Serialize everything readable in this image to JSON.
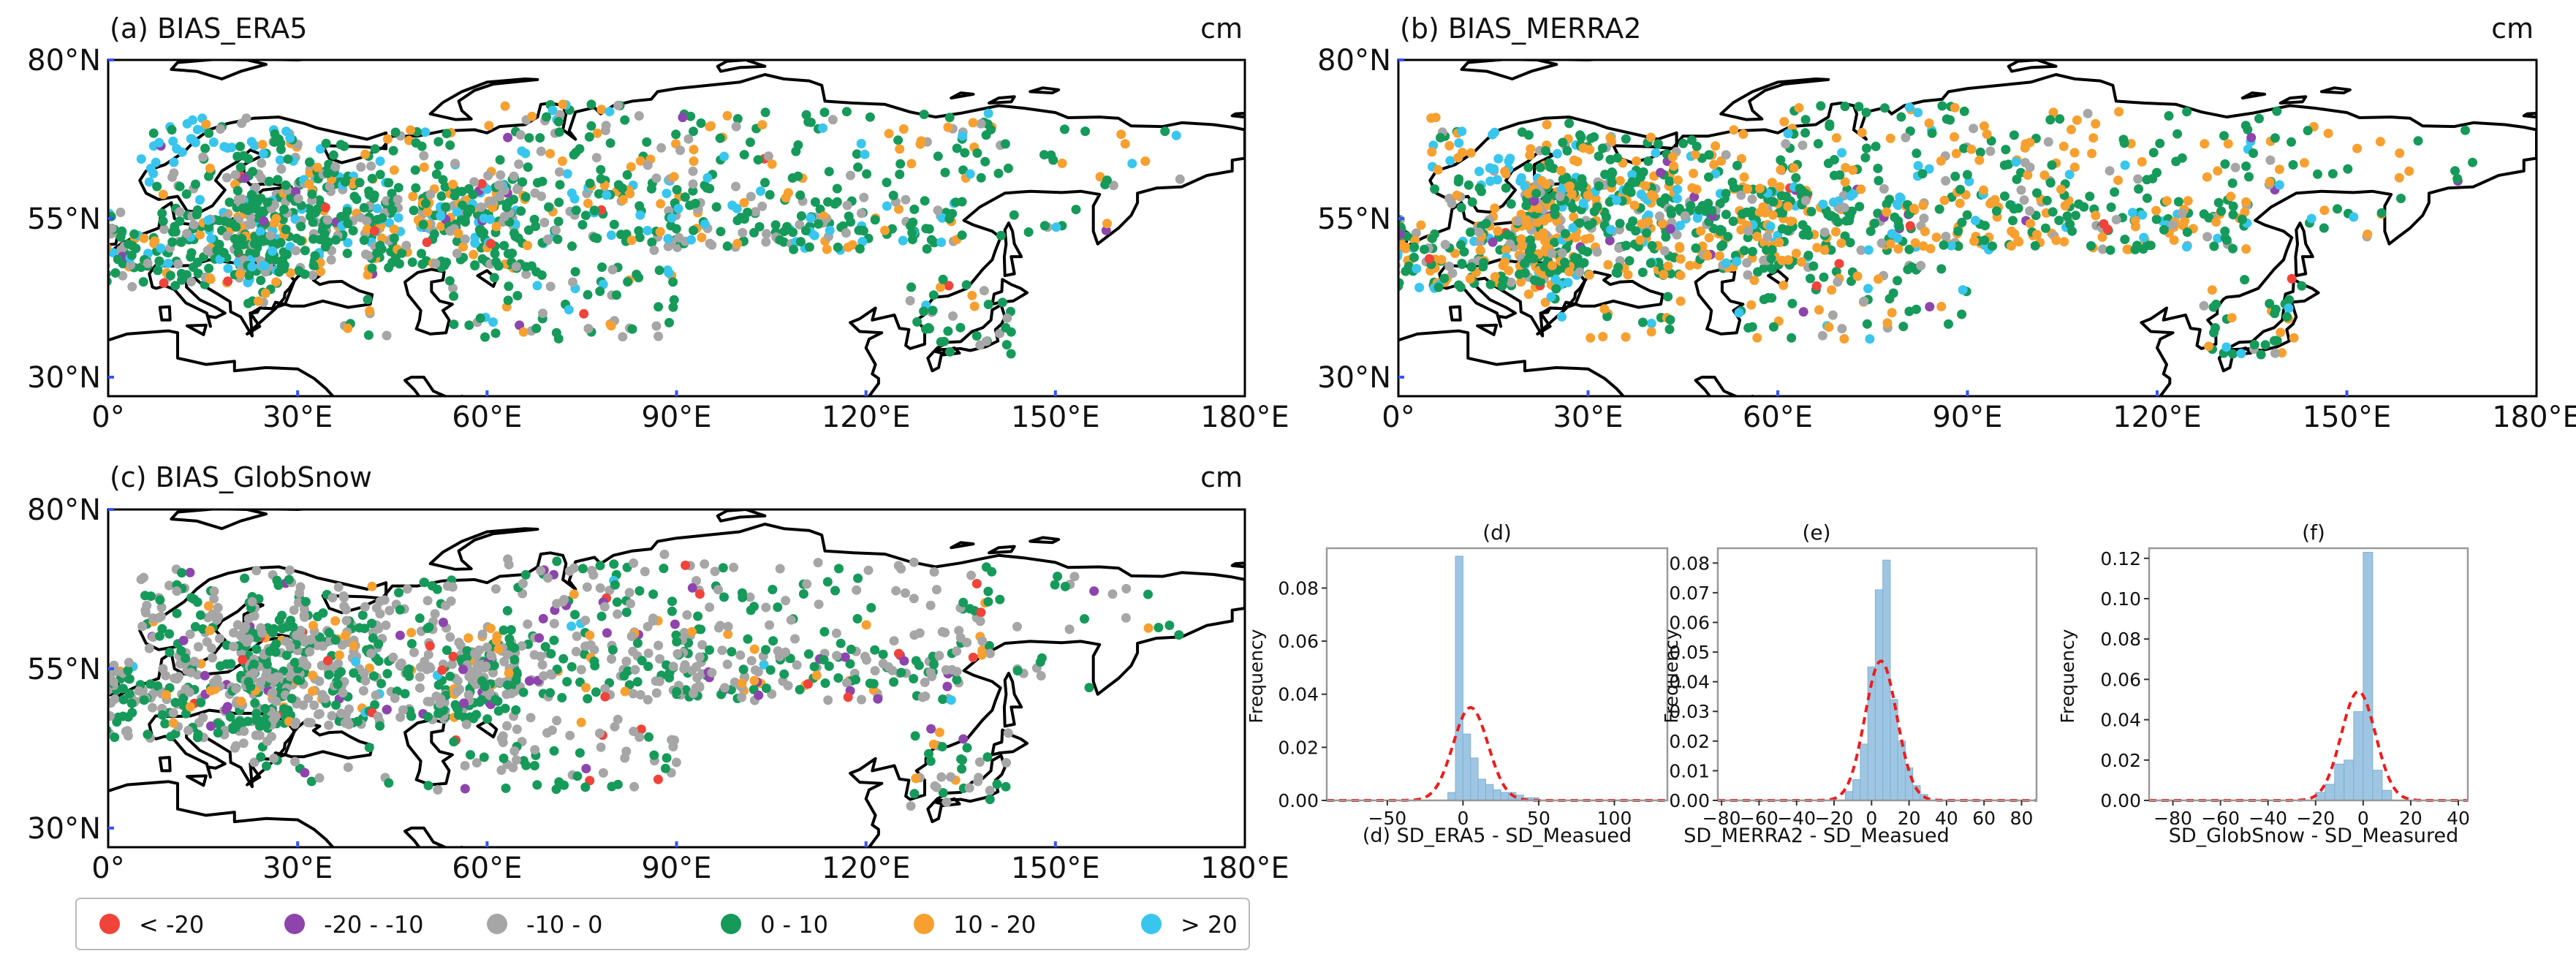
{
  "colors": {
    "lt_m20": "#f0433a",
    "m20_m10": "#8e44ad",
    "m10_0": "#a6a6a6",
    "p0_10": "#159a5a",
    "p10_20": "#f7a02f",
    "gt20": "#38c6ee",
    "hist_bar": "#9ec6e2",
    "hist_edge": "#7fb0d4",
    "fit": "#ee1c1c",
    "land": "#000000"
  },
  "legend": [
    {
      "label": "< -20",
      "color_key": "lt_m20"
    },
    {
      "label": "-20 - -10",
      "color_key": "m20_m10"
    },
    {
      "label": "-10 - 0",
      "color_key": "m10_0"
    },
    {
      "label": "0 - 10",
      "color_key": "p0_10"
    },
    {
      "label": "10 - 20",
      "color_key": "p10_20"
    },
    {
      "label": "> 20",
      "color_key": "gt20"
    }
  ],
  "chart_data": [
    {
      "type": "scatter",
      "id": "a",
      "title": "(a) BIAS_ERA5",
      "unit": "cm",
      "x_ticks": [
        "0°",
        "30°E",
        "60°E",
        "90°E",
        "120°E",
        "150°E",
        "180°E"
      ],
      "x_tick_values": [
        0,
        30,
        60,
        90,
        120,
        150,
        180
      ],
      "y_ticks": [
        "30°N",
        "55°N",
        "80°N"
      ],
      "y_tick_values": [
        30,
        55,
        80
      ],
      "xlim": [
        0,
        180
      ],
      "ylim": [
        27,
        80
      ],
      "class_weights": {
        "lt_m20": 0.01,
        "m20_m10": 0.01,
        "m10_0": 0.2,
        "p0_10": 0.5,
        "p10_20": 0.16,
        "gt20": 0.12
      },
      "seed": 11
    },
    {
      "type": "scatter",
      "id": "b",
      "title": "(b) BIAS_MERRA2",
      "unit": "cm",
      "x_ticks": [
        "0°",
        "30°E",
        "60°E",
        "90°E",
        "120°E",
        "150°E",
        "180°E"
      ],
      "x_tick_values": [
        0,
        30,
        60,
        90,
        120,
        150,
        180
      ],
      "y_ticks": [
        "30°N",
        "55°N",
        "80°N"
      ],
      "y_tick_values": [
        30,
        55,
        80
      ],
      "xlim": [
        0,
        180
      ],
      "ylim": [
        27,
        80
      ],
      "class_weights": {
        "lt_m20": 0.01,
        "m20_m10": 0.02,
        "m10_0": 0.12,
        "p0_10": 0.45,
        "p10_20": 0.3,
        "gt20": 0.1
      },
      "seed": 23
    },
    {
      "type": "scatter",
      "id": "c",
      "title": "(c) BIAS_GlobSnow",
      "unit": "cm",
      "x_ticks": [
        "0°",
        "30°E",
        "60°E",
        "90°E",
        "120°E",
        "150°E",
        "180°E"
      ],
      "x_tick_values": [
        0,
        30,
        60,
        90,
        120,
        150,
        180
      ],
      "y_ticks": [
        "30°N",
        "55°N",
        "80°N"
      ],
      "y_tick_values": [
        30,
        55,
        80
      ],
      "xlim": [
        0,
        180
      ],
      "ylim": [
        27,
        80
      ],
      "class_weights": {
        "lt_m20": 0.02,
        "m20_m10": 0.04,
        "m10_0": 0.5,
        "p0_10": 0.38,
        "p10_20": 0.05,
        "gt20": 0.01
      },
      "seed": 37
    },
    {
      "type": "bar",
      "id": "d",
      "title": "(d)",
      "xlabel": "(d) SD_ERA5 - SD_Measued",
      "ylabel": "Frequency",
      "xlim": [
        -90,
        135
      ],
      "ylim": [
        0,
        0.095
      ],
      "x_ticks": [
        -50,
        0,
        50,
        100
      ],
      "y_ticks": [
        0.0,
        0.02,
        0.04,
        0.06,
        0.08
      ],
      "y_tick_labels": [
        "0.00",
        "0.02",
        "0.04",
        "0.06",
        "0.08"
      ],
      "bin_edges": [
        -10,
        -5,
        0,
        5,
        10,
        15,
        20,
        25,
        30,
        35,
        40,
        45,
        50
      ],
      "values": [
        0.003,
        0.092,
        0.025,
        0.016,
        0.008,
        0.006,
        0.004,
        0.003,
        0.003,
        0.002,
        0.001,
        0.001
      ],
      "fit": {
        "mean": 5,
        "std": 11.5,
        "peak": 0.035
      }
    },
    {
      "type": "bar",
      "id": "e",
      "title": "(e)",
      "xlabel": "SD_MERRA2 - SD_Measued",
      "ylabel": "Frequency",
      "xlim": [
        -82,
        88
      ],
      "ylim": [
        0,
        0.085
      ],
      "x_ticks": [
        -80,
        -60,
        -40,
        -20,
        0,
        20,
        40,
        60,
        80
      ],
      "y_ticks": [
        0.0,
        0.01,
        0.02,
        0.03,
        0.04,
        0.05,
        0.06,
        0.07,
        0.08
      ],
      "y_tick_labels": [
        "0.00",
        "0.01",
        "0.02",
        "0.03",
        "0.04",
        "0.05",
        "0.06",
        "0.07",
        "0.08"
      ],
      "bin_edges": [
        -14,
        -10,
        -6,
        -2,
        2,
        6,
        10,
        14,
        18,
        22,
        26,
        30
      ],
      "values": [
        0.003,
        0.007,
        0.019,
        0.045,
        0.071,
        0.081,
        0.034,
        0.02,
        0.011,
        0.005,
        0.002
      ],
      "fit": {
        "mean": 5,
        "std": 8.5,
        "peak": 0.047
      }
    },
    {
      "type": "bar",
      "id": "f",
      "title": "(f)",
      "xlabel": "SD_GlobSnow - SD_Measured",
      "ylabel": "Frequency",
      "xlim": [
        -90,
        44
      ],
      "ylim": [
        0,
        0.125
      ],
      "x_ticks": [
        -80,
        -60,
        -40,
        -20,
        0,
        20,
        40
      ],
      "y_ticks": [
        0.0,
        0.02,
        0.04,
        0.06,
        0.08,
        0.1,
        0.12
      ],
      "y_tick_labels": [
        "0.00",
        "0.02",
        "0.04",
        "0.06",
        "0.08",
        "0.10",
        "0.12"
      ],
      "bin_edges": [
        -20,
        -16,
        -12,
        -8,
        -4,
        0,
        4,
        8,
        12
      ],
      "values": [
        0.004,
        0.008,
        0.018,
        0.02,
        0.044,
        0.123,
        0.015,
        0.005
      ],
      "fit": {
        "mean": -2,
        "std": 7.2,
        "peak": 0.054
      }
    }
  ]
}
